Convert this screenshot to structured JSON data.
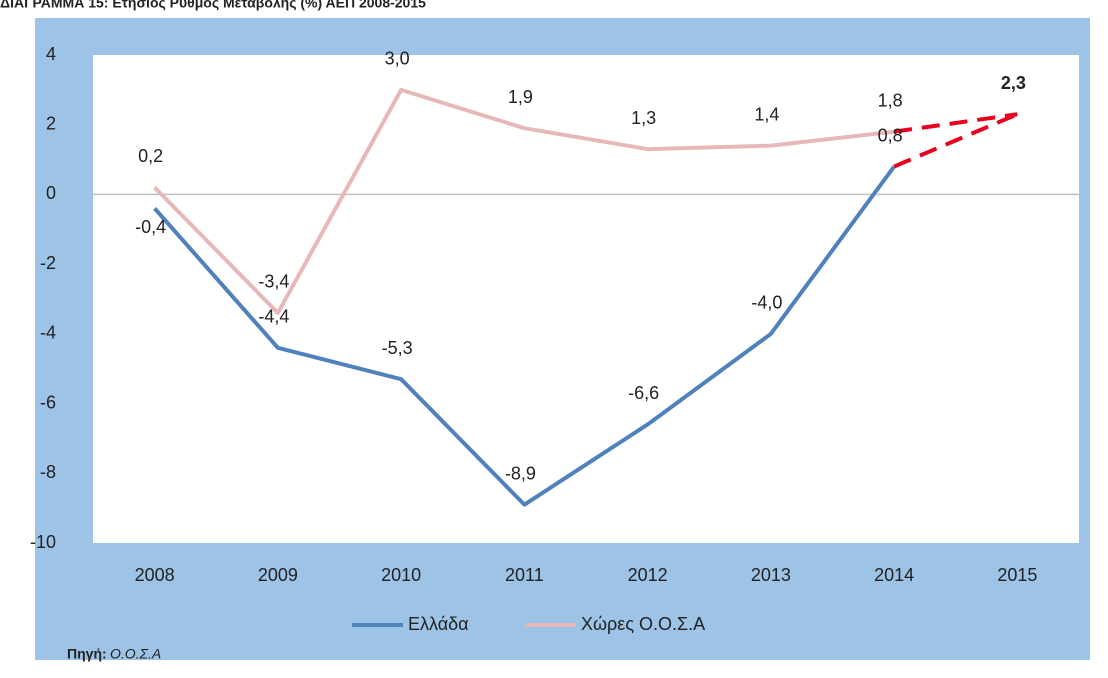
{
  "chart_data": {
    "type": "line",
    "title": "ΔΙΑΓΡΑΜΜΑ 15: Ετήσιος Ρυθμός Μεταβολής (%) ΑΕΠ 2008-2015",
    "categories": [
      "2008",
      "2009",
      "2010",
      "2011",
      "2012",
      "2013",
      "2014",
      "2015"
    ],
    "series": [
      {
        "name": "Ελλάδα",
        "color": "#4f81bd",
        "values": [
          -0.4,
          -4.4,
          -5.3,
          -8.9,
          -6.6,
          -4.0,
          0.8,
          2.3
        ],
        "value_labels": [
          "-0,4",
          "-4,4",
          "-5,3",
          "-8,9",
          "-6,6",
          "-4,0",
          "0,8",
          "2,3"
        ]
      },
      {
        "name": "Χώρες Ο.Ο.Σ.Α",
        "color": "#e6b9b8",
        "values": [
          0.2,
          -3.4,
          3.0,
          1.9,
          1.3,
          1.4,
          1.8,
          2.3
        ],
        "value_labels": [
          "0,2",
          "-3,4",
          "3,0",
          "1,9",
          "1,3",
          "1,4",
          "1,8",
          null
        ]
      }
    ],
    "forecast_start": "2014",
    "forecast_color": "#e8001c",
    "ylim": [
      -10,
      4
    ],
    "yticks": [
      -10,
      -8,
      -6,
      -4,
      -2,
      0,
      2,
      4
    ],
    "source_label": "Πηγή:",
    "source": "Ο.Ο.Σ.Α"
  }
}
